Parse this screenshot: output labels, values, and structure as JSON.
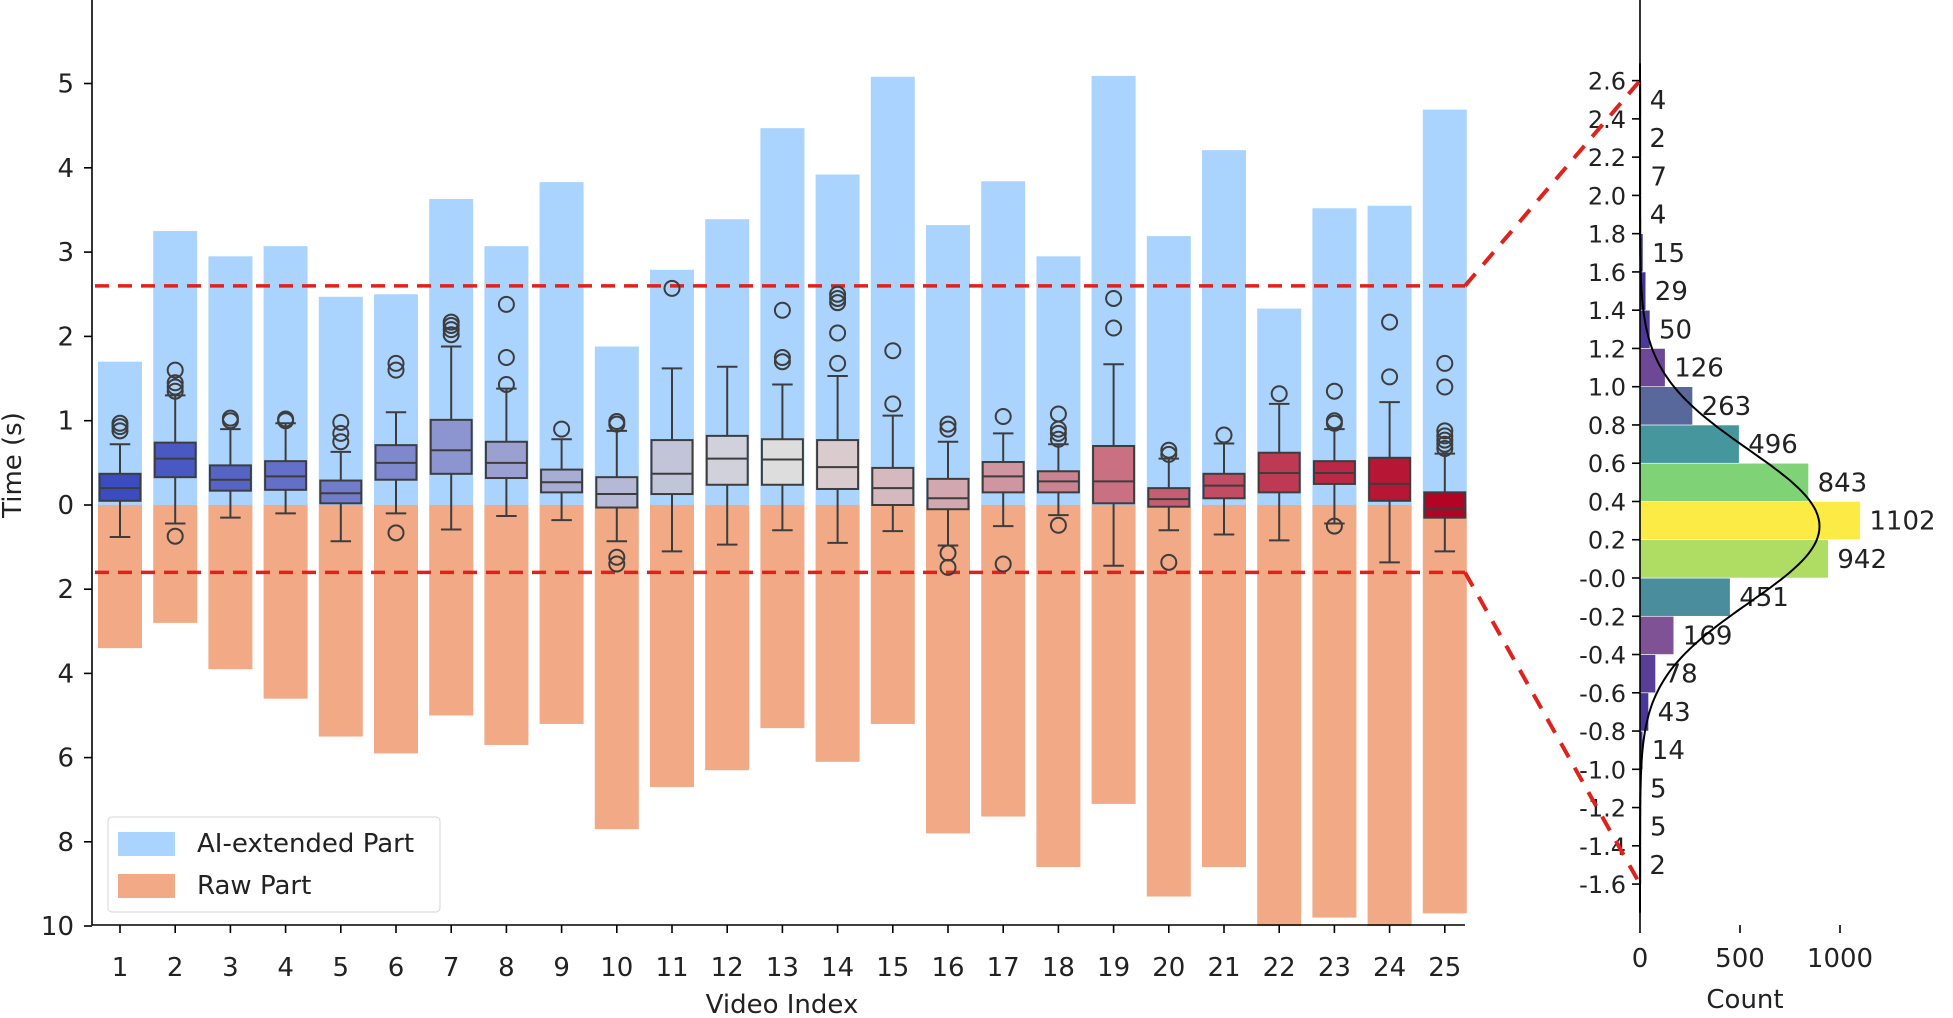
{
  "chart_data": [
    {
      "type": "bar+box",
      "title": "",
      "xlabel": "Video Index",
      "ylabel": "Time (s)",
      "categories": [
        "1",
        "2",
        "3",
        "4",
        "5",
        "6",
        "7",
        "8",
        "9",
        "10",
        "11",
        "12",
        "13",
        "14",
        "15",
        "16",
        "17",
        "18",
        "19",
        "20",
        "21",
        "22",
        "23",
        "24",
        "25"
      ],
      "ylim_ai": [
        0,
        5.5
      ],
      "ylim_raw": [
        0,
        10
      ],
      "ai_ticks": [
        "0",
        "1",
        "2",
        "3",
        "4",
        "5"
      ],
      "raw_ticks": [
        "2",
        "4",
        "6",
        "8",
        "10"
      ],
      "ai_extended": [
        1.7,
        3.25,
        2.95,
        3.07,
        2.47,
        2.5,
        3.63,
        3.07,
        3.83,
        1.88,
        2.79,
        3.39,
        4.47,
        3.92,
        5.08,
        3.32,
        3.84,
        2.95,
        5.09,
        3.19,
        4.21,
        2.33,
        3.52,
        3.55,
        4.69
      ],
      "raw": [
        3.4,
        2.8,
        3.9,
        4.6,
        5.5,
        5.9,
        5.0,
        5.7,
        5.2,
        7.7,
        6.7,
        6.3,
        5.3,
        6.1,
        5.2,
        7.8,
        7.4,
        8.6,
        7.1,
        9.3,
        8.6,
        10.0,
        9.8,
        10.0,
        9.7
      ],
      "threshold_upper": 2.6,
      "threshold_lower": 1.6,
      "boxes": [
        {
          "q1": 0.05,
          "median": 0.2,
          "q3": 0.37,
          "wl": -0.38,
          "wh": 0.72,
          "fliers": [
            0.88,
            0.93,
            0.97
          ]
        },
        {
          "q1": 0.33,
          "median": 0.55,
          "q3": 0.74,
          "wl": -0.22,
          "wh": 1.3,
          "fliers": [
            -0.37,
            1.35,
            1.4,
            1.45,
            1.6
          ]
        },
        {
          "q1": 0.17,
          "median": 0.3,
          "q3": 0.47,
          "wl": -0.15,
          "wh": 0.9,
          "fliers": [
            1.0,
            1.03
          ]
        },
        {
          "q1": 0.18,
          "median": 0.34,
          "q3": 0.52,
          "wl": -0.1,
          "wh": 0.97,
          "fliers": [
            1.0,
            1.02
          ]
        },
        {
          "q1": 0.02,
          "median": 0.14,
          "q3": 0.29,
          "wl": -0.43,
          "wh": 0.63,
          "fliers": [
            0.75,
            0.85,
            0.98
          ]
        },
        {
          "q1": 0.3,
          "median": 0.5,
          "q3": 0.71,
          "wl": -0.1,
          "wh": 1.1,
          "fliers": [
            -0.33,
            1.6,
            1.68
          ]
        },
        {
          "q1": 0.37,
          "median": 0.65,
          "q3": 1.01,
          "wl": -0.29,
          "wh": 1.88,
          "fliers": [
            2.02,
            2.08,
            2.13,
            2.17
          ]
        },
        {
          "q1": 0.32,
          "median": 0.5,
          "q3": 0.75,
          "wl": -0.13,
          "wh": 1.38,
          "fliers": [
            1.43,
            1.75,
            2.38
          ]
        },
        {
          "q1": 0.15,
          "median": 0.27,
          "q3": 0.42,
          "wl": -0.18,
          "wh": 0.78,
          "fliers": [
            0.9
          ]
        },
        {
          "q1": -0.03,
          "median": 0.13,
          "q3": 0.33,
          "wl": -0.43,
          "wh": 0.88,
          "fliers": [
            -0.62,
            -0.7,
            0.96,
            0.99
          ]
        },
        {
          "q1": 0.13,
          "median": 0.37,
          "q3": 0.77,
          "wl": -0.55,
          "wh": 1.62,
          "fliers": [
            2.57
          ]
        },
        {
          "q1": 0.24,
          "median": 0.55,
          "q3": 0.82,
          "wl": -0.47,
          "wh": 1.64,
          "fliers": []
        },
        {
          "q1": 0.24,
          "median": 0.54,
          "q3": 0.78,
          "wl": -0.3,
          "wh": 1.43,
          "fliers": [
            1.7,
            1.75,
            2.31
          ]
        },
        {
          "q1": 0.19,
          "median": 0.45,
          "q3": 0.77,
          "wl": -0.45,
          "wh": 1.53,
          "fliers": [
            1.68,
            2.04,
            2.4,
            2.45,
            2.5
          ]
        },
        {
          "q1": 0.0,
          "median": 0.2,
          "q3": 0.44,
          "wl": -0.31,
          "wh": 1.06,
          "fliers": [
            1.2,
            1.83
          ]
        },
        {
          "q1": -0.05,
          "median": 0.08,
          "q3": 0.31,
          "wl": -0.48,
          "wh": 0.75,
          "fliers": [
            -0.57,
            -0.74,
            0.9,
            0.96
          ]
        },
        {
          "q1": 0.15,
          "median": 0.34,
          "q3": 0.51,
          "wl": -0.25,
          "wh": 0.85,
          "fliers": [
            -0.7,
            1.05
          ]
        },
        {
          "q1": 0.15,
          "median": 0.28,
          "q3": 0.4,
          "wl": -0.12,
          "wh": 0.72,
          "fliers": [
            -0.24,
            0.78,
            0.85,
            0.9,
            1.08
          ]
        },
        {
          "q1": 0.02,
          "median": 0.28,
          "q3": 0.7,
          "wl": -0.72,
          "wh": 1.67,
          "fliers": [
            2.1,
            2.45
          ]
        },
        {
          "q1": -0.02,
          "median": 0.07,
          "q3": 0.2,
          "wl": -0.3,
          "wh": 0.55,
          "fliers": [
            -0.68,
            0.6,
            0.65
          ]
        },
        {
          "q1": 0.08,
          "median": 0.23,
          "q3": 0.37,
          "wl": -0.35,
          "wh": 0.73,
          "fliers": [
            0.83
          ]
        },
        {
          "q1": 0.15,
          "median": 0.38,
          "q3": 0.62,
          "wl": -0.42,
          "wh": 1.2,
          "fliers": [
            1.32
          ]
        },
        {
          "q1": 0.25,
          "median": 0.38,
          "q3": 0.52,
          "wl": -0.22,
          "wh": 0.9,
          "fliers": [
            -0.25,
            0.97,
            1.0,
            1.35
          ]
        },
        {
          "q1": 0.05,
          "median": 0.25,
          "q3": 0.56,
          "wl": -0.68,
          "wh": 1.22,
          "fliers": [
            1.52,
            2.17
          ]
        },
        {
          "q1": -0.15,
          "median": -0.05,
          "q3": 0.15,
          "wl": -0.55,
          "wh": 0.61,
          "fliers": [
            0.67,
            0.72,
            0.77,
            0.82,
            0.88,
            1.4,
            1.68
          ]
        }
      ],
      "legend": [
        {
          "label": "AI-extended Part",
          "color": "#aad4fd"
        },
        {
          "label": "Raw Part",
          "color": "#f1aa85"
        }
      ],
      "legend_position": "lower-left"
    },
    {
      "type": "histogram",
      "orientation": "horizontal",
      "xlabel": "Count",
      "x_ticks": [
        "0",
        "500",
        "1000"
      ],
      "xlim": [
        0,
        1250
      ],
      "bins": [
        -1.6,
        -1.4,
        -1.2,
        -1.0,
        -0.8,
        -0.6,
        -0.4,
        -0.2,
        0.0,
        0.2,
        0.4,
        0.6,
        0.8,
        1.0,
        1.2,
        1.4,
        1.6,
        1.8,
        2.0,
        2.2,
        2.4,
        2.6
      ],
      "counts": [
        2,
        5,
        5,
        14,
        43,
        78,
        169,
        451,
        942,
        1102,
        843,
        496,
        263,
        126,
        50,
        29,
        15,
        4,
        7,
        2,
        4
      ],
      "count_labels": [
        "2",
        "5",
        "5",
        "14",
        "43",
        "78",
        "169",
        "451",
        "942",
        "1102",
        "843",
        "496",
        "263",
        "126",
        "50",
        "29",
        "15",
        "4",
        "7",
        "2",
        "4"
      ],
      "y_ticks": [
        "-1.6",
        "-1.4",
        "-1.2",
        "-1.0",
        "-0.8",
        "-0.6",
        "-0.4",
        "-0.2",
        "-0.0",
        "0.2",
        "0.4",
        "0.6",
        "0.8",
        "1.0",
        "1.2",
        "1.4",
        "1.6",
        "1.8",
        "2.0",
        "2.2",
        "2.4",
        "2.6"
      ],
      "ylim": [
        -1.75,
        2.7
      ],
      "density_curve": true
    }
  ],
  "colors": {
    "ai": "#aad4fd",
    "raw": "#f1aa85",
    "threshold": "#e0221c",
    "box_edge": "#3d3d3d"
  }
}
